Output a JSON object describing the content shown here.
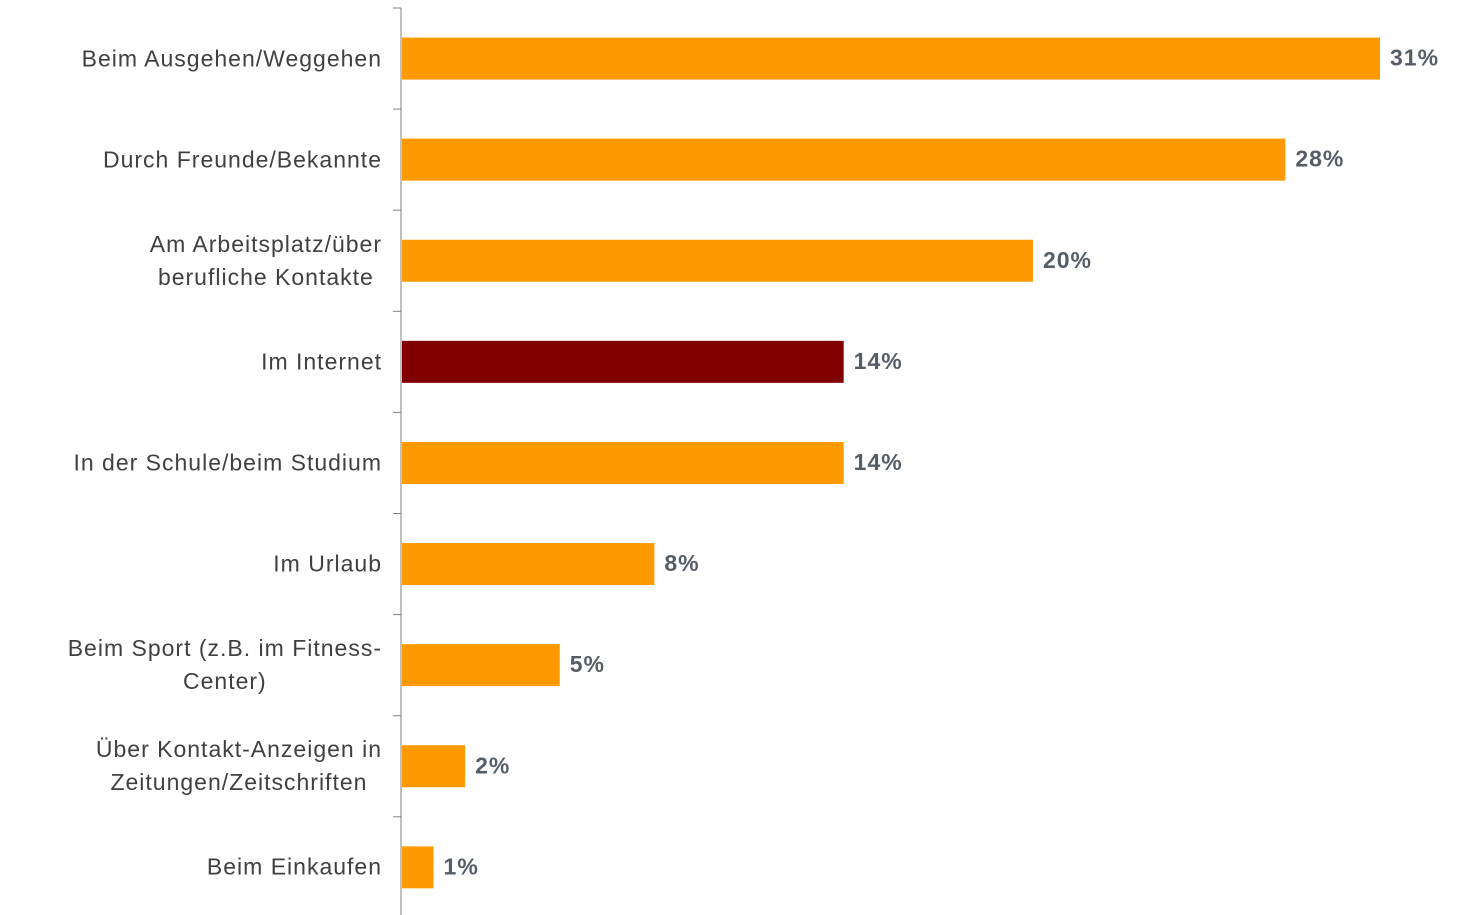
{
  "chart_data": {
    "type": "bar",
    "orientation": "horizontal",
    "categories": [
      "Beim Ausgehen/Weggehen",
      "Durch Freunde/Bekannte",
      "Am Arbeitsplatz/über\nberufliche Kontakte",
      "Im Internet",
      "In der Schule/beim Studium",
      "Im Urlaub",
      "Beim Sport (z.B. im Fitness-\nCenter)",
      "Über Kontakt-Anzeigen in\nZeitungen/Zeitschriften",
      "Beim Einkaufen"
    ],
    "values": [
      31,
      28,
      20,
      14,
      14,
      8,
      5,
      2,
      1
    ],
    "value_labels": [
      "31%",
      "28%",
      "20%",
      "14%",
      "14%",
      "8%",
      "5%",
      "2%",
      "1%"
    ],
    "colors": [
      "#ff9900",
      "#ff9900",
      "#ff9900",
      "#800000",
      "#ff9900",
      "#ff9900",
      "#ff9900",
      "#ff9900",
      "#ff9900"
    ]
  }
}
